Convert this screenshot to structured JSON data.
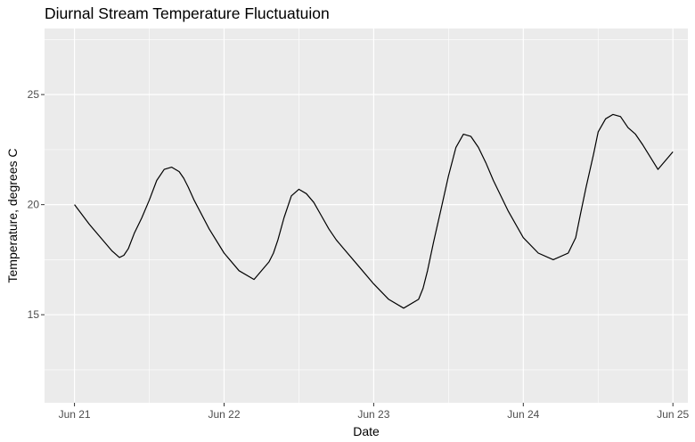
{
  "chart_data": {
    "type": "line",
    "title": "Diurnal Stream Temperature Fluctuatuion",
    "xlabel": "Date",
    "ylabel": "Temperature, degrees C",
    "x_ticks": [
      "Jun 21",
      "Jun 22",
      "Jun 23",
      "Jun 24",
      "Jun 25"
    ],
    "y_ticks": [
      15,
      20,
      25
    ],
    "xlim": [
      -0.2,
      4.1
    ],
    "ylim": [
      11,
      28
    ],
    "grid": true,
    "background": "#ebebeb",
    "grid_color": "#ffffff",
    "line_color": "#000000",
    "series": [
      {
        "x": [
          0.0,
          0.1,
          0.2,
          0.25,
          0.3,
          0.33,
          0.36,
          0.4,
          0.45,
          0.5,
          0.55,
          0.6,
          0.65,
          0.7,
          0.73,
          0.76,
          0.8,
          0.9,
          1.0,
          1.1,
          1.2,
          1.3,
          1.33,
          1.36,
          1.4,
          1.45,
          1.5,
          1.55,
          1.6,
          1.65,
          1.7,
          1.75,
          1.8,
          1.9,
          2.0,
          2.1,
          2.2,
          2.3,
          2.33,
          2.36,
          2.4,
          2.45,
          2.5,
          2.55,
          2.6,
          2.65,
          2.7,
          2.75,
          2.8,
          2.9,
          3.0,
          3.1,
          3.2,
          3.3,
          3.35,
          3.38,
          3.42,
          3.47,
          3.5,
          3.55,
          3.6,
          3.65,
          3.7,
          3.75,
          3.8,
          3.9,
          4.0
        ],
        "y": [
          20.0,
          19.1,
          18.3,
          17.9,
          17.6,
          17.7,
          18.0,
          18.7,
          19.4,
          20.2,
          21.1,
          21.6,
          21.7,
          21.5,
          21.2,
          20.8,
          20.2,
          18.9,
          17.8,
          17.0,
          16.6,
          17.4,
          17.8,
          18.4,
          19.4,
          20.4,
          20.7,
          20.5,
          20.1,
          19.5,
          18.9,
          18.4,
          18.0,
          17.2,
          16.4,
          15.7,
          15.3,
          15.7,
          16.2,
          17.0,
          18.3,
          19.8,
          21.3,
          22.6,
          23.2,
          23.1,
          22.6,
          21.9,
          21.1,
          19.7,
          18.5,
          17.8,
          17.5,
          17.8,
          18.5,
          19.5,
          20.8,
          22.3,
          23.3,
          23.9,
          24.1,
          24.0,
          23.5,
          23.2,
          22.7,
          21.6,
          22.4
        ]
      }
    ]
  }
}
